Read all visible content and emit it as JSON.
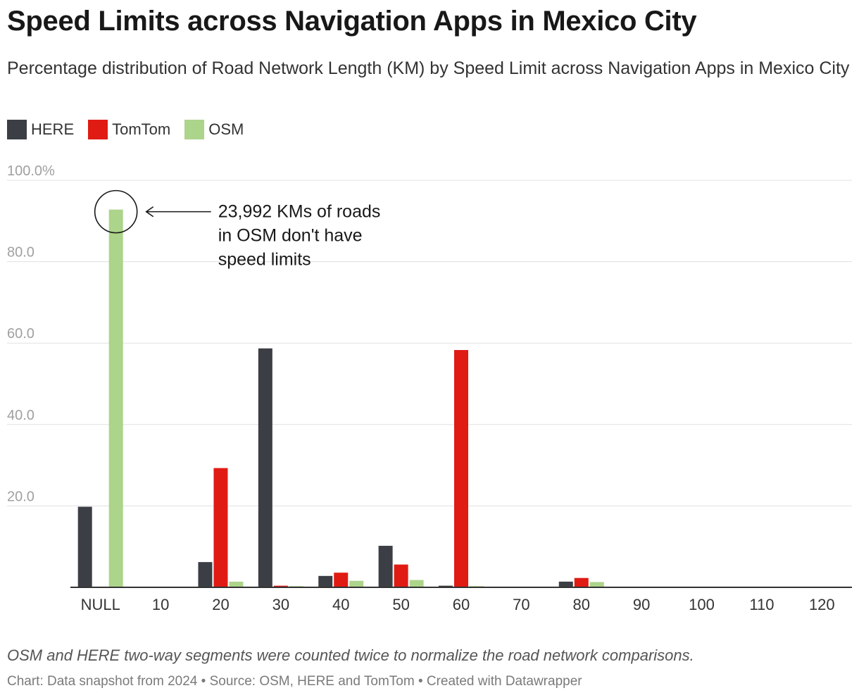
{
  "chart_data": {
    "type": "bar",
    "title": "Speed Limits across Navigation Apps in Mexico City",
    "subtitle": "Percentage distribution of Road Network Length (KM) by Speed Limit across Navigation Apps in Mexico City",
    "categories": [
      "NULL",
      "10",
      "20",
      "30",
      "40",
      "50",
      "60",
      "70",
      "80",
      "90",
      "100",
      "110",
      "120"
    ],
    "series": [
      {
        "name": "HERE",
        "color": "#3b3e45",
        "values": [
          19.8,
          0,
          6.2,
          58.7,
          2.8,
          10.2,
          0.4,
          0,
          1.4,
          0,
          0,
          0,
          0
        ]
      },
      {
        "name": "TomTom",
        "color": "#e01b14",
        "values": [
          0,
          0,
          29.3,
          0.4,
          3.6,
          5.6,
          58.3,
          0,
          2.3,
          0,
          0,
          0,
          0
        ]
      },
      {
        "name": "OSM",
        "color": "#acd48a",
        "values": [
          92.8,
          0,
          1.4,
          0.3,
          1.6,
          1.8,
          0.3,
          0,
          1.3,
          0,
          0,
          0,
          0
        ]
      }
    ],
    "ylim": [
      0,
      100
    ],
    "yticks": [
      {
        "value": 20,
        "label": "20.0"
      },
      {
        "value": 40,
        "label": "40.0"
      },
      {
        "value": 60,
        "label": "60.0"
      },
      {
        "value": 80,
        "label": "80.0"
      },
      {
        "value": 100,
        "label": "100.0%"
      }
    ],
    "xlabel": "",
    "ylabel": "",
    "grid": true,
    "legend": "top-left",
    "annotation": {
      "category": "NULL",
      "series": "OSM",
      "lines": [
        "23,992 KMs of roads",
        "in OSM don't have",
        "speed limits"
      ]
    },
    "note": "OSM and HERE two-way segments were counted twice to normalize the road network comparisons.",
    "credit": "Chart: Data snapshot from 2024 • Source: OSM, HERE and TomTom • Created with Datawrapper"
  }
}
